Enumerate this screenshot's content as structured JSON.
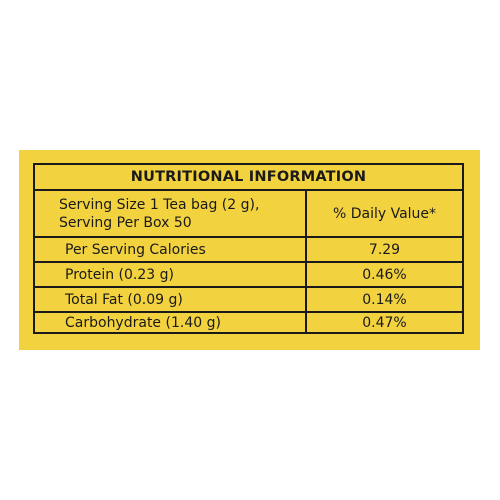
{
  "title": "NUTRITIONAL INFORMATION",
  "serving": {
    "line1": "Serving Size 1 Tea bag (2 g),",
    "line2": "Serving Per Box 50",
    "header_right": "% Daily Value*"
  },
  "rows": [
    {
      "label": "Per Serving Calories",
      "value": "7.29"
    },
    {
      "label": "Protein (0.23 g)",
      "value": "0.46%"
    },
    {
      "label": "Total Fat (0.09 g)",
      "value": "0.14%"
    },
    {
      "label": "Carbohydrate (1.40 g)",
      "value": "0.47%"
    }
  ],
  "colors": {
    "panel": "#f3d23f",
    "ink": "#1a1a1a"
  }
}
